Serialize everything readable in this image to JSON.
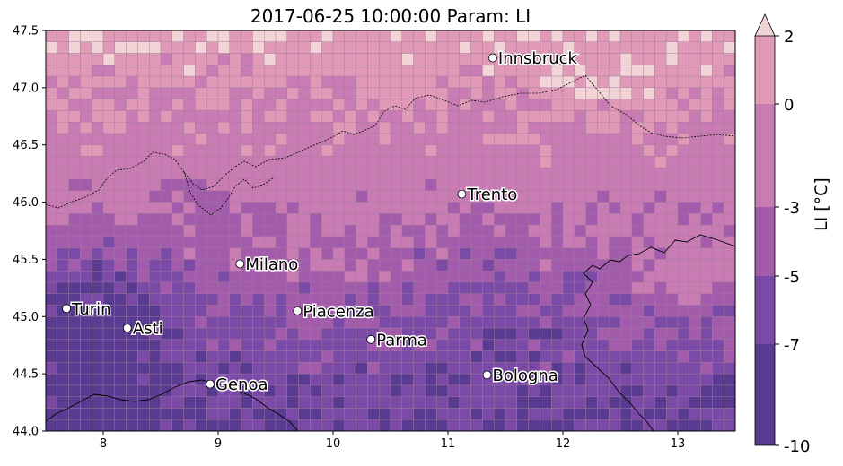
{
  "title": "2017-06-25 10:00:00 Param: LI",
  "map": {
    "lon_range": [
      7.5,
      13.5
    ],
    "lat_range": [
      44.0,
      47.5
    ],
    "x_ticks": [
      "8",
      "9",
      "10",
      "11",
      "12",
      "13"
    ],
    "y_ticks": [
      "44.0",
      "44.5",
      "45.0",
      "45.5",
      "46.0",
      "46.5",
      "47.0",
      "47.5"
    ],
    "grid_cells": "on",
    "coastline_color": "#000000",
    "cities": [
      {
        "name": "Innsbruck",
        "lon": 11.39,
        "lat": 47.26
      },
      {
        "name": "Trento",
        "lon": 11.12,
        "lat": 46.07
      },
      {
        "name": "Milano",
        "lon": 9.19,
        "lat": 45.46
      },
      {
        "name": "Turin",
        "lon": 7.68,
        "lat": 45.07
      },
      {
        "name": "Asti",
        "lon": 8.21,
        "lat": 44.9
      },
      {
        "name": "Piacenza",
        "lon": 9.69,
        "lat": 45.05
      },
      {
        "name": "Parma",
        "lon": 10.33,
        "lat": 44.8
      },
      {
        "name": "Genoa",
        "lon": 8.93,
        "lat": 44.41
      },
      {
        "name": "Bologna",
        "lon": 11.34,
        "lat": 44.49
      }
    ]
  },
  "colorbar": {
    "label": "LI  [°C]",
    "ticks": [
      "2",
      "0",
      "-3",
      "-5",
      "-7",
      "-10"
    ],
    "levels": [
      -10,
      -7,
      -5,
      -3,
      0,
      2
    ],
    "extend": "max",
    "colors": [
      "#5a3b92",
      "#7a4aa6",
      "#a35bab",
      "#c97cb3",
      "#e09ab7",
      "#f2d4d6"
    ]
  }
}
